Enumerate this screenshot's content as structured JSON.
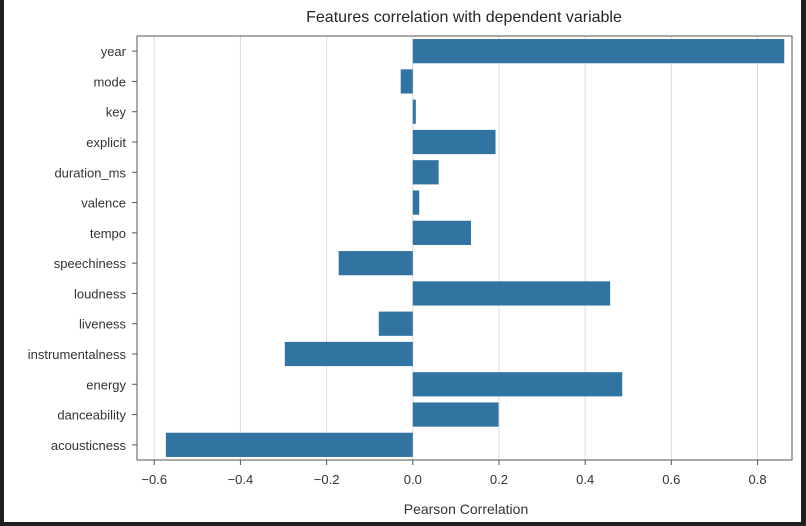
{
  "chart_data": {
    "type": "bar",
    "orientation": "horizontal",
    "title": "Features correlation with dependent variable",
    "xlabel": "Pearson Correlation",
    "ylabel": "",
    "xlim": [
      -0.64,
      0.88
    ],
    "xticks": [
      -0.6,
      -0.4,
      -0.2,
      0.0,
      0.2,
      0.4,
      0.6,
      0.8
    ],
    "xtick_labels": [
      "−0.6",
      "−0.4",
      "−0.2",
      "0.0",
      "0.2",
      "0.4",
      "0.6",
      "0.8"
    ],
    "grid": "vertical",
    "categories": [
      "year",
      "mode",
      "key",
      "explicit",
      "duration_ms",
      "valence",
      "tempo",
      "speechiness",
      "loudness",
      "liveness",
      "instrumentalness",
      "energy",
      "danceability",
      "acousticness"
    ],
    "values": [
      0.862,
      -0.028,
      0.007,
      0.192,
      0.06,
      0.015,
      0.135,
      -0.172,
      0.458,
      -0.079,
      -0.297,
      0.486,
      0.199,
      -0.573
    ],
    "colors": {
      "bar": "#3274a1",
      "grid": "#dcdcdc",
      "spine": "#555555",
      "text": "#333333"
    }
  }
}
